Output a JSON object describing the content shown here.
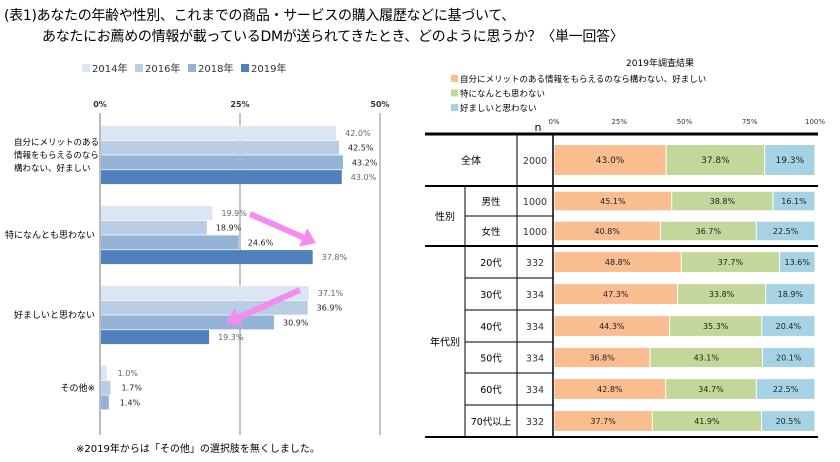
{
  "title_line1": "(表1)あなたの年齢や性別、これまでの商品・サービスの購入履歴などに基づいて、",
  "title_line2": "あなたにお薦めの情報が載っているDMが送られてきたとき、どのように思うか？〈単一回答〉",
  "footnote": "※2019年からは「その他」の選択肢を無くしました。",
  "colors": {
    "2014": "#dce6f2",
    "2016": "#b9cde5",
    "2018": "#95b3d7",
    "2019": "#4f81bd",
    "positive": "#f9bd8f",
    "neutral": "#c4d79b",
    "negative": "#a6d3e4",
    "arrow": "#f48cf0"
  },
  "chart_data": [
    {
      "type": "bar",
      "orientation": "horizontal",
      "legend_position": "top",
      "xlim": [
        0,
        50
      ],
      "x_ticks": [
        "0%",
        "25%",
        "50%"
      ],
      "categories": [
        "自分にメリットのある情報をもらえるのなら構わない、好ましい",
        "特になんとも思わない",
        "好ましいと思わない",
        "その他※"
      ],
      "category_labels": [
        [
          "自分にメリットのある",
          "情報をもらえるのなら",
          "構わない、好ましい"
        ],
        [
          "特になんとも思わない"
        ],
        [
          "好ましいと思わない"
        ],
        [
          "その他※"
        ]
      ],
      "series": [
        {
          "name": "2014年",
          "values": [
            42.0,
            19.9,
            37.1,
            1.0
          ],
          "labels": [
            "42.0%",
            "19.9%",
            "37.1%",
            "1.0%"
          ]
        },
        {
          "name": "2016年",
          "values": [
            42.5,
            18.9,
            36.9,
            1.7
          ],
          "labels": [
            "42.5%",
            "18.9%",
            "36.9%",
            "1.7%"
          ]
        },
        {
          "name": "2018年",
          "values": [
            43.2,
            24.6,
            30.9,
            1.4
          ],
          "labels": [
            "43.2%",
            "24.6%",
            "30.9%",
            "1.4%"
          ]
        },
        {
          "name": "2019年",
          "values": [
            43.0,
            37.8,
            19.3,
            null
          ],
          "labels": [
            "43.0%",
            "37.8%",
            "19.3%",
            ""
          ]
        }
      ]
    },
    {
      "type": "bar",
      "orientation": "horizontal",
      "stacked": true,
      "title": "2019年調査結果",
      "legend_position": "top-left",
      "xlim": [
        0,
        100
      ],
      "x_ticks": [
        "0%",
        "25%",
        "50%",
        "75%",
        "100%"
      ],
      "n_header": "n",
      "series_names": [
        "自分にメリットのある情報をもらえるのなら構わない、好ましい",
        "特になんとも思わない",
        "好ましいと思わない"
      ],
      "groups": [
        {
          "label": "全体",
          "rows": [
            {
              "label": "",
              "n": "2000",
              "values": [
                43.0,
                37.8,
                19.3
              ]
            }
          ]
        },
        {
          "label": "性別",
          "rows": [
            {
              "label": "男性",
              "n": "1000",
              "values": [
                45.1,
                38.8,
                16.1
              ]
            },
            {
              "label": "女性",
              "n": "1000",
              "values": [
                40.8,
                36.7,
                22.5
              ]
            }
          ]
        },
        {
          "label": "年代別",
          "rows": [
            {
              "label": "20代",
              "n": "332",
              "values": [
                48.8,
                37.7,
                13.6
              ]
            },
            {
              "label": "30代",
              "n": "334",
              "values": [
                47.3,
                33.8,
                18.9
              ]
            },
            {
              "label": "40代",
              "n": "334",
              "values": [
                44.3,
                35.3,
                20.4
              ]
            },
            {
              "label": "50代",
              "n": "334",
              "values": [
                36.8,
                43.1,
                20.1
              ]
            },
            {
              "label": "60代",
              "n": "334",
              "values": [
                42.8,
                34.7,
                22.5
              ]
            },
            {
              "label": "70代以上",
              "n": "332",
              "values": [
                37.7,
                41.9,
                20.5
              ]
            }
          ]
        }
      ]
    }
  ]
}
